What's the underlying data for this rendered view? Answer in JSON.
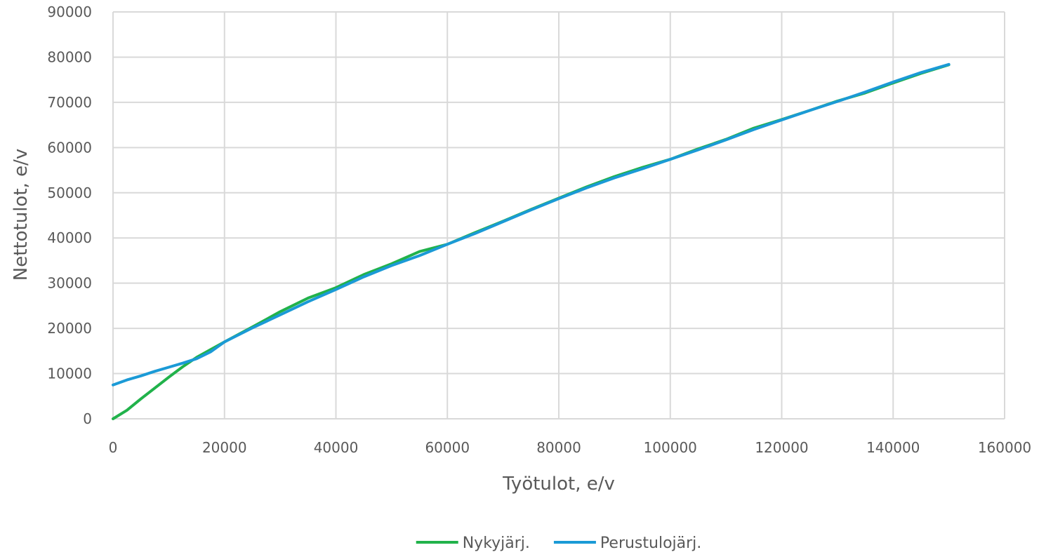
{
  "chart_data": {
    "type": "line",
    "title": "",
    "xlabel": "Työtulot, e/v",
    "ylabel": "Nettotulot, e/v",
    "xlim": [
      0,
      160000
    ],
    "ylim": [
      0,
      90000
    ],
    "x_ticks": [
      "0",
      "20000",
      "40000",
      "60000",
      "80000",
      "100000",
      "120000",
      "140000",
      "160000"
    ],
    "y_ticks": [
      "0",
      "10000",
      "20000",
      "30000",
      "40000",
      "50000",
      "60000",
      "70000",
      "80000",
      "90000"
    ],
    "grid": true,
    "legend_position": "bottom",
    "x": [
      0,
      2500,
      5000,
      7500,
      10000,
      12500,
      15000,
      17500,
      20000,
      25000,
      30000,
      35000,
      40000,
      45000,
      50000,
      55000,
      60000,
      65000,
      70000,
      75000,
      80000,
      85000,
      90000,
      95000,
      100000,
      105000,
      110000,
      115000,
      120000,
      125000,
      130000,
      135000,
      140000,
      145000,
      150000
    ],
    "series": [
      {
        "name": "Nykyjärj.",
        "color": "#21b24b",
        "values": [
          0,
          1900,
          4400,
          6800,
          9200,
          11500,
          13600,
          15300,
          17000,
          20300,
          23700,
          26700,
          29000,
          31900,
          34300,
          37000,
          38600,
          41200,
          43700,
          46300,
          48800,
          51300,
          53600,
          55600,
          57400,
          59700,
          61800,
          64300,
          66200,
          68200,
          70300,
          72100,
          74300,
          76400,
          78300
        ]
      },
      {
        "name": "Perustulojärj.",
        "color": "#1b9ad6",
        "values": [
          7500,
          8600,
          9500,
          10500,
          11400,
          12300,
          13300,
          14800,
          17000,
          20100,
          23000,
          25900,
          28600,
          31400,
          33900,
          36100,
          38600,
          41000,
          43600,
          46200,
          48700,
          51100,
          53300,
          55300,
          57400,
          59500,
          61700,
          64000,
          66100,
          68200,
          70200,
          72300,
          74500,
          76600,
          78400
        ]
      }
    ]
  }
}
